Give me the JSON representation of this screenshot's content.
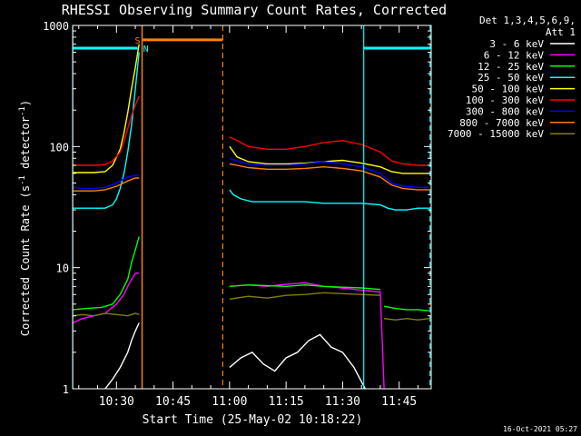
{
  "chart_data": {
    "type": "line",
    "title": "RHESSI Observing Summary Count Rates, Corrected",
    "xlabel": "Start Time (25-May-02 10:18:22)",
    "ylabel": "Corrected Count Rate (s⁻¹ detector⁻¹)",
    "ylabel_parts": {
      "main": "Corrected Count Rate (s",
      "sup1": "-1",
      "mid": " detector",
      "sup2": "-1",
      "end": ")"
    },
    "xticks": [
      "10:30",
      "10:45",
      "11:00",
      "11:15",
      "11:30",
      "11:45"
    ],
    "xtick_minutes": [
      30,
      45,
      60,
      75,
      90,
      105
    ],
    "xlim_minutes": [
      18.37,
      113.5
    ],
    "yscale": "log",
    "ylim": [
      1,
      1000
    ],
    "yticks": [
      "1",
      "10",
      "100",
      "1000"
    ],
    "ytick_values": [
      1,
      10,
      100,
      1000
    ],
    "legend_header": [
      "Det 1,3,4,5,6,9,",
      "Att 1"
    ],
    "timestamp": "16-Oct-2021 05:27",
    "series": [
      {
        "name": "3 - 6 keV",
        "color": "#ffffff",
        "segments": [
          {
            "x": [
              27,
              29,
              31,
              33,
              34,
              35,
              36
            ],
            "y": [
              1,
              1.2,
              1.5,
              2,
              2.5,
              3,
              3.5
            ]
          },
          {
            "x": [
              60,
              63,
              66,
              69,
              72,
              75,
              78,
              81,
              84,
              87,
              90,
              93,
              96
            ],
            "y": [
              1.5,
              1.8,
              2,
              1.6,
              1.4,
              1.8,
              2,
              2.5,
              2.8,
              2.2,
              2,
              1.5,
              1
            ]
          }
        ]
      },
      {
        "name": "6 - 12 keV",
        "color": "#ff00ff",
        "segments": [
          {
            "x": [
              18.4,
              21,
              24,
              27,
              30,
              32,
              33,
              34,
              35,
              36
            ],
            "y": [
              3.5,
              3.8,
              4,
              4.2,
              5,
              6,
              7,
              8,
              9,
              9
            ]
          },
          {
            "x": [
              60,
              65,
              70,
              75,
              80,
              85,
              90,
              95,
              100,
              101
            ],
            "y": [
              7,
              7.2,
              7,
              7.3,
              7.5,
              7,
              6.8,
              6.5,
              6.3,
              1
            ]
          }
        ]
      },
      {
        "name": "12 - 25 keV",
        "color": "#00ff00",
        "segments": [
          {
            "x": [
              18.4,
              22,
              26,
              29,
              31,
              33,
              34,
              35,
              36
            ],
            "y": [
              4.5,
              4.6,
              4.7,
              5,
              6,
              8,
              11,
              14,
              18
            ]
          },
          {
            "x": [
              60,
              65,
              70,
              75,
              80,
              85,
              90,
              95,
              100
            ],
            "y": [
              7,
              7.2,
              7.1,
              7,
              7.2,
              7,
              6.9,
              6.8,
              6.6
            ]
          },
          {
            "x": [
              101,
              104,
              107,
              110,
              113
            ],
            "y": [
              4.8,
              4.6,
              4.5,
              4.5,
              4.4
            ]
          }
        ]
      },
      {
        "name": "25 - 50 keV",
        "color": "#00ffff",
        "segments": [
          {
            "x": [
              18.4,
              21,
              24,
              27,
              29,
              30,
              31,
              32,
              33,
              34,
              35,
              36
            ],
            "y": [
              31,
              31,
              31,
              31,
              33,
              37,
              45,
              60,
              90,
              150,
              300,
              600
            ]
          },
          {
            "x": [
              60,
              61,
              63,
              66,
              70,
              75,
              80,
              85,
              90,
              95,
              100,
              102,
              104,
              107,
              110,
              113
            ],
            "y": [
              44,
              40,
              37,
              35,
              35,
              35,
              35,
              34,
              34,
              34,
              33,
              31,
              30,
              30,
              31,
              31
            ]
          }
        ]
      },
      {
        "name": "50 - 100 keV",
        "color": "#ffff00",
        "segments": [
          {
            "x": [
              18.4,
              21,
              24,
              27,
              29,
              31,
              32,
              33,
              34,
              35,
              36
            ],
            "y": [
              61,
              61,
              61,
              62,
              70,
              95,
              130,
              190,
              300,
              450,
              700
            ]
          },
          {
            "x": [
              60,
              62,
              65,
              70,
              75,
              80,
              85,
              90,
              95,
              100,
              103,
              106,
              110,
              113
            ],
            "y": [
              100,
              82,
              75,
              72,
              72,
              73,
              75,
              77,
              73,
              68,
              62,
              60,
              60,
              60
            ]
          }
        ]
      },
      {
        "name": "100 - 300 keV",
        "color": "#ff0000",
        "segments": [
          {
            "x": [
              18.4,
              21,
              24,
              27,
              29,
              31,
              32,
              33,
              34,
              35,
              36
            ],
            "y": [
              70,
              70,
              70,
              71,
              76,
              90,
              110,
              140,
              180,
              220,
              260
            ]
          },
          {
            "x": [
              60,
              62,
              65,
              70,
              75,
              80,
              85,
              90,
              95,
              100,
              103,
              106,
              110,
              113
            ],
            "y": [
              120,
              112,
              100,
              95,
              95,
              100,
              108,
              112,
              104,
              90,
              76,
              72,
              70,
              70
            ]
          }
        ]
      },
      {
        "name": "300 - 800 keV",
        "color": "#0000ff",
        "segments": [
          {
            "x": [
              18.4,
              21,
              24,
              27,
              30,
              33,
              35,
              36
            ],
            "y": [
              46,
              45,
              45,
              46,
              50,
              56,
              58,
              58
            ]
          },
          {
            "x": [
              60,
              62,
              65,
              70,
              75,
              80,
              85,
              90,
              95,
              100,
              103,
              106,
              110,
              113
            ],
            "y": [
              80,
              76,
              72,
              70,
              70,
              72,
              75,
              72,
              68,
              60,
              50,
              47,
              46,
              46
            ]
          }
        ]
      },
      {
        "name": "800 - 7000 keV",
        "color": "#ff8000",
        "segments": [
          {
            "x": [
              18.4,
              21,
              24,
              27,
              30,
              33,
              35,
              36
            ],
            "y": [
              43,
              43,
              43,
              44,
              47,
              52,
              55,
              55
            ]
          },
          {
            "x": [
              60,
              62,
              65,
              70,
              75,
              80,
              85,
              90,
              95,
              100,
              103,
              106,
              110,
              113
            ],
            "y": [
              72,
              70,
              67,
              65,
              65,
              66,
              68,
              66,
              63,
              56,
              48,
              45,
              44,
              44
            ]
          }
        ]
      },
      {
        "name": "7000 - 15000 keV",
        "color": "#808000",
        "segments": [
          {
            "x": [
              18.4,
              21,
              24,
              27,
              30,
              33,
              35,
              36
            ],
            "y": [
              4,
              4.1,
              4,
              4.2,
              4.1,
              4,
              4.2,
              4.1
            ]
          },
          {
            "x": [
              60,
              65,
              70,
              75,
              80,
              85,
              90,
              95,
              100
            ],
            "y": [
              5.5,
              5.8,
              5.6,
              5.9,
              6,
              6.2,
              6.1,
              6,
              5.9
            ]
          },
          {
            "x": [
              101,
              104,
              107,
              110,
              113
            ],
            "y": [
              3.8,
              3.7,
              3.8,
              3.7,
              3.8
            ]
          }
        ]
      }
    ],
    "markers": {
      "cyan_solid_minutes": [
        18.4,
        95.6
      ],
      "cyan_dashed_minutes": [
        113.2
      ],
      "cyan_bar": [
        {
          "from": 18.4,
          "to": 35.6,
          "y": 650
        },
        {
          "from": 95.6,
          "to": 113.2,
          "y": 650
        }
      ],
      "orange_solid_minutes": [
        36.8
      ],
      "orange_dashed_minutes": [
        58.2
      ],
      "orange_bar": {
        "from": 37.0,
        "to": 58.2,
        "y": 760
      },
      "s_label": {
        "text": "S",
        "minute": 35.6
      },
      "n_label": {
        "text": "N",
        "minute": 37.8
      },
      "cyan_color": "#00ffff",
      "orange_color": "#ff8000"
    }
  }
}
